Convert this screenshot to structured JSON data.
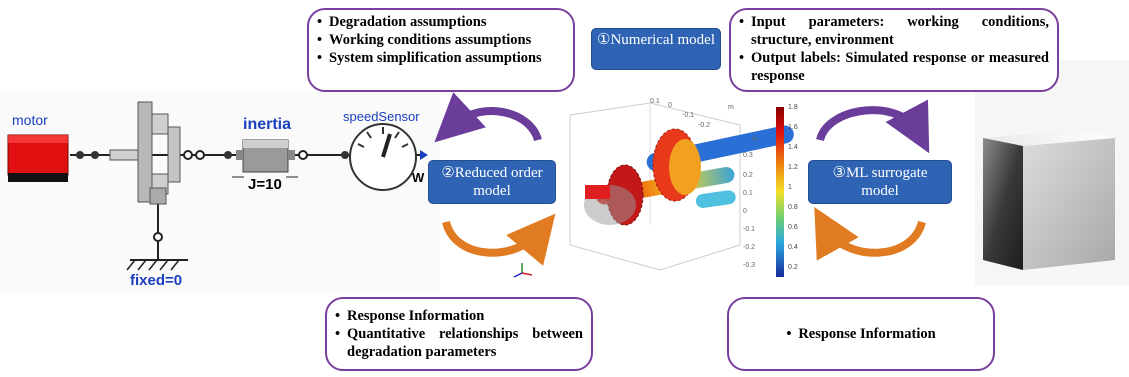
{
  "notes": {
    "assumptions": [
      "Degradation assumptions",
      "Working conditions assumptions",
      "System simplification assumptions"
    ],
    "io": [
      "Input parameters: working conditions, structure, environment",
      "Output labels: Simulated response or measured response"
    ],
    "response_left": [
      "Response Information",
      "Quantitative relationships between degradation parameters"
    ],
    "response_right": [
      "Response Information"
    ]
  },
  "models": {
    "numerical": {
      "num": "①",
      "label": "Numerical model"
    },
    "reduced": {
      "num": "②",
      "label": "Reduced order model"
    },
    "ml": {
      "num": "③",
      "label": "ML surrogate model"
    }
  },
  "modelica": {
    "motor": "motor",
    "inertia": "inertia",
    "inertia_param": "J=10",
    "speed_sensor": "speedSensor",
    "speed_out": "W",
    "fixed": "fixed=0"
  },
  "colorbar": {
    "ticks": [
      "1.8",
      "1.6",
      "1.4",
      "1.2",
      "1",
      "0.8",
      "0.6",
      "0.4",
      "0.2"
    ]
  },
  "fem_axes": {
    "ticks": [
      "0.1",
      "0",
      "-0.1",
      "-0.2",
      "0.3",
      "0.2",
      "0.1",
      "0",
      "-0.1",
      "-0.2",
      "-0.3"
    ],
    "unit": "m"
  },
  "colors": {
    "note_border": "#7b3f9e",
    "model_box": "#2f63b4",
    "arrow_purple": "#6a3d9a",
    "arrow_orange": "#e07b22",
    "modelica_label": "#1a3fbf"
  }
}
